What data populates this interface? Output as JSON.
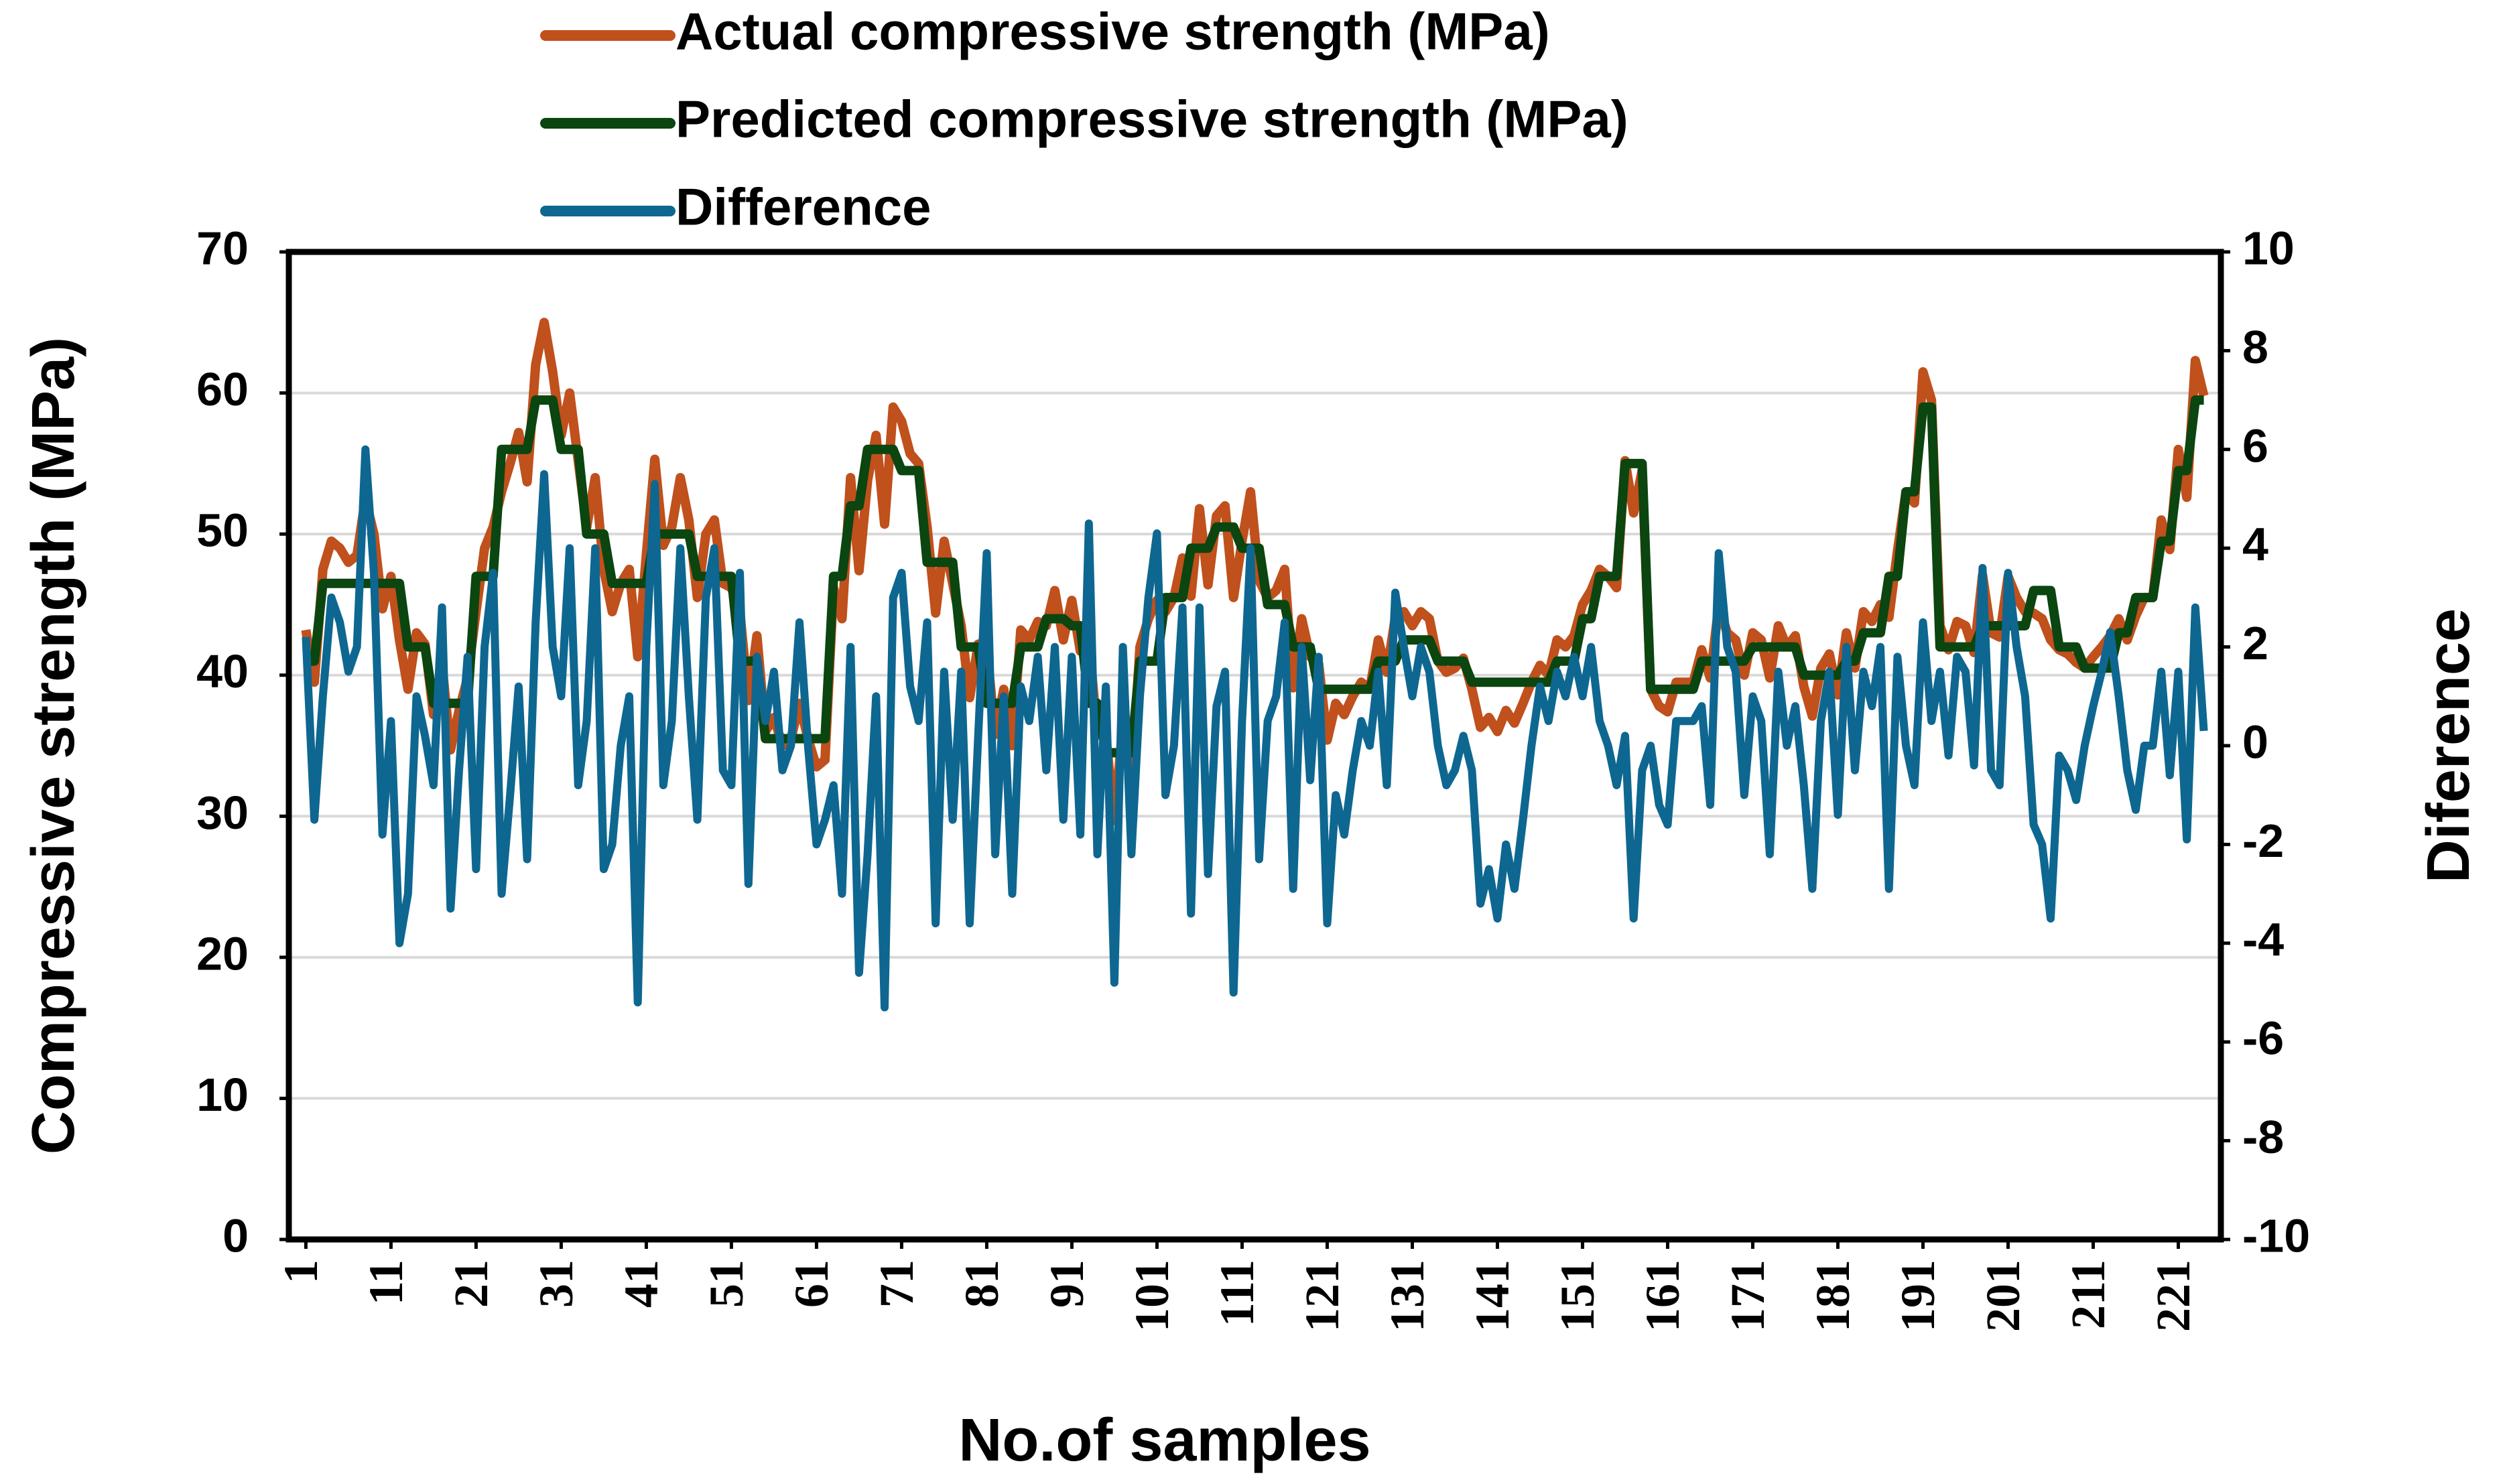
{
  "chart_data": {
    "type": "line",
    "xlabel": "No.of samples",
    "ylabel": "Compressive strength (MPa)",
    "y2label": "Diference",
    "grid": true,
    "legend": "top",
    "xlim": [
      -1,
      226
    ],
    "xticks": [
      1,
      11,
      21,
      31,
      41,
      51,
      61,
      71,
      81,
      91,
      101,
      111,
      121,
      131,
      141,
      151,
      161,
      171,
      181,
      191,
      201,
      211,
      221
    ],
    "ylim": [
      0,
      70
    ],
    "yticks": [
      0,
      10,
      20,
      30,
      40,
      50,
      60,
      70
    ],
    "y2lim": [
      -10,
      10
    ],
    "y2ticks": [
      -10,
      -8,
      -6,
      -4,
      -2,
      0,
      2,
      4,
      6,
      8,
      10
    ],
    "x": [
      1,
      2,
      3,
      4,
      5,
      6,
      7,
      8,
      9,
      10,
      11,
      12,
      13,
      14,
      15,
      16,
      17,
      18,
      19,
      20,
      21,
      22,
      23,
      24,
      25,
      26,
      27,
      28,
      29,
      30,
      31,
      32,
      33,
      34,
      35,
      36,
      37,
      38,
      39,
      40,
      41,
      42,
      43,
      44,
      45,
      46,
      47,
      48,
      49,
      50,
      51,
      52,
      53,
      54,
      55,
      56,
      57,
      58,
      59,
      60,
      61,
      62,
      63,
      64,
      65,
      66,
      67,
      68,
      69,
      70,
      71,
      72,
      73,
      74,
      75,
      76,
      77,
      78,
      79,
      80,
      81,
      82,
      83,
      84,
      85,
      86,
      87,
      88,
      89,
      90,
      91,
      92,
      93,
      94,
      95,
      96,
      97,
      98,
      99,
      100,
      101,
      102,
      103,
      104,
      105,
      106,
      107,
      108,
      109,
      110,
      111,
      112,
      113,
      114,
      115,
      116,
      117,
      118,
      119,
      120,
      121,
      122,
      123,
      124,
      125,
      126,
      127,
      128,
      129,
      130,
      131,
      132,
      133,
      134,
      135,
      136,
      137,
      138,
      139,
      140,
      141,
      142,
      143,
      144,
      145,
      146,
      147,
      148,
      149,
      150,
      151,
      152,
      153,
      154,
      155,
      156,
      157,
      158,
      159,
      160,
      161,
      162,
      163,
      164,
      165,
      166,
      167,
      168,
      169,
      170,
      171,
      172,
      173,
      174,
      175,
      176,
      177,
      178,
      179,
      180,
      181,
      182,
      183,
      184,
      185,
      186,
      187,
      188,
      189,
      190,
      191,
      192,
      193,
      194,
      195,
      196,
      197,
      198,
      199,
      200,
      201,
      202,
      203,
      204,
      205,
      206,
      207,
      208,
      209,
      210,
      211,
      212,
      213,
      214,
      215,
      216,
      217,
      218,
      219,
      220,
      221,
      222,
      223,
      224
    ],
    "series": [
      {
        "name": "Actual compressive strength (MPa)",
        "color": "#c0501c",
        "values": [
          43.2,
          39.5,
          47.5,
          49.5,
          49.0,
          48.0,
          48.5,
          52.5,
          50.0,
          44.7,
          47.0,
          42.5,
          39.0,
          43.0,
          42.2,
          37.2,
          40.8,
          34.7,
          37.5,
          39.8,
          44.5,
          49.0,
          50.5,
          53.0,
          55.0,
          57.2,
          53.7,
          62.0,
          65.0,
          61.5,
          57.0,
          60.0,
          55.2,
          50.5,
          54.0,
          47.5,
          44.5,
          46.5,
          47.5,
          41.3,
          48.5,
          55.3,
          49.2,
          50.5,
          54.0,
          51.0,
          45.5,
          50.0,
          51.0,
          46.5,
          46.2,
          44.5,
          38.2,
          42.8,
          36.0,
          37.0,
          35.0,
          35.5,
          38.0,
          35.5,
          33.5,
          34.0,
          46.2,
          44.0,
          54.0,
          47.4,
          53.8,
          57.0,
          50.7,
          59.0,
          58.0,
          55.7,
          55.0,
          50.5,
          44.4,
          49.5,
          46.5,
          43.5,
          38.4,
          42.2,
          41.9,
          35.8,
          39.0,
          35.0,
          43.2,
          42.5,
          43.8,
          43.5,
          46.0,
          42.5,
          45.3,
          41.7,
          42.5,
          35.8,
          35.7,
          29.7,
          36.5,
          32.3,
          42.0,
          44.0,
          45.3,
          44.5,
          45.5,
          48.3,
          45.6,
          51.8,
          46.4,
          51.3,
          52.0,
          45.5,
          49.5,
          53.0,
          46.7,
          45.5,
          46.0,
          47.5,
          39.1,
          44.0,
          41.3,
          40.8,
          35.4,
          38.0,
          37.2,
          38.5,
          39.5,
          39.0,
          42.5,
          40.2,
          44.1,
          44.5,
          43.5,
          44.5,
          44.0,
          41.0,
          40.2,
          40.5,
          41.2,
          39.0,
          36.3,
          37.0,
          36.0,
          37.5,
          36.6,
          38.0,
          39.5,
          40.7,
          40.0,
          42.5,
          42.0,
          42.8,
          45.0,
          46.0,
          47.5,
          47.0,
          46.2,
          55.2,
          51.5,
          54.5,
          39.0,
          37.8,
          37.4,
          39.5,
          39.5,
          39.5,
          41.8,
          39.8,
          44.9,
          43.0,
          42.5,
          40.0,
          43.0,
          42.5,
          39.8,
          43.5,
          42.0,
          42.8,
          39.2,
          37.1,
          40.5,
          41.5,
          38.6,
          43.0,
          40.5,
          44.5,
          43.8,
          45.0,
          44.1,
          48.8,
          53.0,
          52.2,
          61.5,
          59.5,
          43.5,
          41.8,
          43.8,
          43.5,
          41.6,
          47.1,
          43.0,
          42.7,
          47.0,
          45.5,
          44.5,
          44.4,
          44.0,
          42.5,
          41.8,
          41.5,
          40.9,
          40.5,
          41.3,
          42.0,
          42.8,
          44.0,
          42.5,
          44.2,
          45.5,
          45.5,
          51.0,
          48.9,
          56.0,
          52.6,
          62.3,
          59.8
        ]
      },
      {
        "name": "Predicted compressive strength (MPa)",
        "color": "#0b4510",
        "values": [
          41,
          41,
          46.5,
          46.5,
          46.5,
          46.5,
          46.5,
          46.5,
          46.5,
          46.5,
          46.5,
          46.5,
          42,
          42,
          42,
          38,
          38,
          38,
          38,
          38,
          47,
          47,
          47,
          56,
          56,
          56,
          56,
          59.5,
          59.5,
          59.5,
          56,
          56,
          56,
          50,
          50,
          50,
          46.5,
          46.5,
          46.5,
          46.5,
          46.5,
          50,
          50,
          50,
          50,
          50,
          47,
          47,
          47,
          47,
          47,
          41,
          41,
          41,
          35.5,
          35.5,
          35.5,
          35.5,
          35.5,
          35.5,
          35.5,
          35.5,
          47,
          47,
          52,
          52,
          56,
          56,
          56,
          56,
          54.5,
          54.5,
          54.5,
          48,
          48,
          48,
          48,
          42,
          42,
          42,
          38,
          38,
          38,
          38,
          42,
          42,
          42,
          44,
          44,
          44,
          43.5,
          43.5,
          38,
          38,
          34.5,
          34.5,
          34.5,
          34.5,
          41,
          41,
          41,
          45.5,
          45.5,
          45.5,
          49,
          49,
          49,
          50.5,
          50.5,
          50.5,
          49,
          49,
          49,
          45,
          45,
          45,
          42,
          42,
          42,
          39,
          39,
          39,
          39,
          39,
          39,
          39,
          41,
          41,
          41,
          42.5,
          42.5,
          42.5,
          42.5,
          41,
          41,
          41,
          41,
          39.5,
          39.5,
          39.5,
          39.5,
          39.5,
          39.5,
          39.5,
          39.5,
          39.5,
          39.5,
          41,
          41,
          41,
          44,
          44,
          47,
          47,
          47,
          55,
          55,
          55,
          39,
          39,
          39,
          39,
          39,
          39,
          41,
          41,
          41,
          41,
          41,
          41,
          42,
          42,
          42,
          42,
          42,
          42,
          40,
          40,
          40,
          40,
          40,
          41,
          41,
          43,
          43,
          43,
          47,
          47,
          53,
          53,
          59,
          59,
          42,
          42,
          42,
          42,
          42,
          43.5,
          43.5,
          43.5,
          43.5,
          43.5,
          43.5,
          46,
          46,
          46,
          42,
          42,
          42,
          40.5,
          40.5,
          40.5,
          40.5,
          43,
          43,
          45.5,
          45.5,
          45.5,
          49.5,
          49.5,
          54.5,
          54.5,
          59.5,
          59.5
        ]
      },
      {
        "name": "Difference",
        "color": "#0e6790",
        "axis": "y2",
        "values": [
          2.2,
          -1.5,
          1.0,
          3.0,
          2.5,
          1.5,
          2.0,
          6.0,
          3.5,
          -1.8,
          0.5,
          -4.0,
          -3.0,
          1.0,
          0.2,
          -0.8,
          2.8,
          -3.3,
          -0.5,
          1.8,
          -2.5,
          2.0,
          3.5,
          -3.0,
          -1.0,
          1.2,
          -2.3,
          2.5,
          5.5,
          2.0,
          1.0,
          4.0,
          -0.8,
          0.5,
          4.0,
          -2.5,
          -2.0,
          0.0,
          1.0,
          -5.2,
          2.0,
          5.3,
          -0.8,
          0.5,
          4.0,
          1.0,
          -1.5,
          3.0,
          4.0,
          -0.5,
          -0.8,
          3.5,
          -2.8,
          1.8,
          0.5,
          1.5,
          -0.5,
          0.0,
          2.5,
          0.0,
          -2.0,
          -1.5,
          -0.8,
          -3.0,
          2.0,
          -4.6,
          -2.2,
          1.0,
          -5.3,
          3.0,
          3.5,
          1.2,
          0.5,
          2.5,
          -3.6,
          1.5,
          -1.5,
          1.5,
          -3.6,
          0.2,
          3.9,
          -2.2,
          1.0,
          -3.0,
          1.2,
          0.5,
          1.8,
          -0.5,
          2.0,
          -1.5,
          1.8,
          -1.8,
          4.5,
          -2.2,
          1.2,
          -4.8,
          2.0,
          -2.2,
          1.0,
          3.0,
          4.3,
          -1.0,
          0.0,
          2.8,
          -3.4,
          2.8,
          -2.6,
          0.8,
          1.5,
          -5.0,
          0.5,
          4.0,
          -2.3,
          0.5,
          1.0,
          2.5,
          -2.9,
          2.0,
          -0.7,
          1.8,
          -3.6,
          -1.0,
          -1.8,
          -0.5,
          0.5,
          0.0,
          1.5,
          -0.8,
          3.1,
          2.0,
          1.0,
          2.0,
          1.5,
          0.0,
          -0.8,
          -0.5,
          0.2,
          -0.5,
          -3.2,
          -2.5,
          -3.5,
          -2.0,
          -2.9,
          -1.5,
          0.0,
          1.2,
          0.5,
          1.5,
          1.0,
          1.8,
          1.0,
          2.0,
          0.5,
          0.0,
          -0.8,
          0.2,
          -3.5,
          -0.5,
          0.0,
          -1.2,
          -1.6,
          0.5,
          0.5,
          0.5,
          0.8,
          -1.2,
          3.9,
          2.0,
          1.5,
          -1.0,
          1.0,
          0.5,
          -2.2,
          1.5,
          0.0,
          0.8,
          -0.8,
          -2.9,
          0.5,
          1.5,
          -1.4,
          2.0,
          -0.5,
          1.5,
          0.8,
          2.0,
          -2.9,
          1.8,
          0.0,
          -0.8,
          2.5,
          0.5,
          1.5,
          -0.2,
          1.8,
          1.5,
          -0.4,
          3.6,
          -0.5,
          -0.8,
          3.5,
          2.0,
          1.0,
          -1.6,
          -2.0,
          -3.5,
          -0.2,
          -0.5,
          -1.1,
          0.0,
          0.8,
          1.5,
          2.3,
          1.0,
          -0.5,
          -1.3,
          0.0,
          0.0,
          1.5,
          -0.6,
          1.5,
          -1.9,
          2.8,
          0.3
        ]
      }
    ]
  }
}
